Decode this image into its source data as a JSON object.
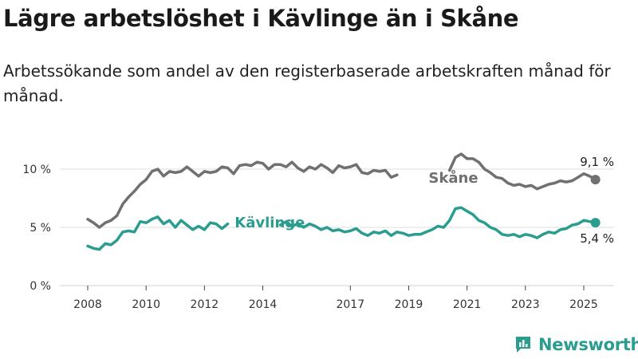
{
  "title": "Lägre arbetslöshet i Kävlinge än i Skåne",
  "subtitle": "Arbetssökande som andel av den registerbaserade arbetskraften månad för månad.",
  "brand": {
    "name": "Newsworthy",
    "icon": "newsworthy-chart-logo-icon",
    "color": "#2a9d8f"
  },
  "chart_data": {
    "type": "line",
    "x_ticks": [
      "2008",
      "2010",
      "2012",
      "2014",
      "2017",
      "2019",
      "2021",
      "2023",
      "2025"
    ],
    "y_ticks": [
      {
        "value": 0,
        "label": "0 %"
      },
      {
        "value": 5,
        "label": "5 %"
      },
      {
        "value": 10,
        "label": "10 %"
      }
    ],
    "ylim": [
      0,
      12
    ],
    "xlim": [
      2007.5,
      2026.5
    ],
    "grid": true,
    "series": [
      {
        "name": "Skåne",
        "color": "#707070",
        "end_label": "9,1 %",
        "points": [
          [
            2008.0,
            5.7
          ],
          [
            2008.2,
            5.4
          ],
          [
            2008.4,
            5.0
          ],
          [
            2008.6,
            5.4
          ],
          [
            2008.8,
            5.6
          ],
          [
            2009.0,
            6.0
          ],
          [
            2009.2,
            7.0
          ],
          [
            2009.4,
            7.6
          ],
          [
            2009.6,
            8.1
          ],
          [
            2009.8,
            8.7
          ],
          [
            2010.0,
            9.1
          ],
          [
            2010.2,
            9.8
          ],
          [
            2010.4,
            10.0
          ],
          [
            2010.6,
            9.4
          ],
          [
            2010.8,
            9.8
          ],
          [
            2011.0,
            9.7
          ],
          [
            2011.2,
            9.8
          ],
          [
            2011.4,
            10.2
          ],
          [
            2011.6,
            9.8
          ],
          [
            2011.8,
            9.4
          ],
          [
            2012.0,
            9.8
          ],
          [
            2012.2,
            9.7
          ],
          [
            2012.4,
            9.8
          ],
          [
            2012.6,
            10.2
          ],
          [
            2012.8,
            10.1
          ],
          [
            2013.0,
            9.6
          ],
          [
            2013.2,
            10.3
          ],
          [
            2013.4,
            10.4
          ],
          [
            2013.6,
            10.3
          ],
          [
            2013.8,
            10.6
          ],
          [
            2014.0,
            10.5
          ],
          [
            2014.2,
            10.0
          ],
          [
            2014.4,
            10.4
          ],
          [
            2014.6,
            10.4
          ],
          [
            2014.8,
            10.2
          ],
          [
            2015.0,
            10.6
          ],
          [
            2015.2,
            10.1
          ],
          [
            2015.4,
            9.8
          ],
          [
            2015.6,
            10.2
          ],
          [
            2015.8,
            10.0
          ],
          [
            2016.0,
            10.4
          ],
          [
            2016.2,
            10.1
          ],
          [
            2016.4,
            9.7
          ],
          [
            2016.6,
            10.3
          ],
          [
            2016.8,
            10.1
          ],
          [
            2017.0,
            10.2
          ],
          [
            2017.2,
            10.4
          ],
          [
            2017.4,
            9.7
          ],
          [
            2017.6,
            9.6
          ],
          [
            2017.8,
            9.9
          ],
          [
            2018.0,
            9.8
          ],
          [
            2018.2,
            9.9
          ],
          [
            2018.4,
            9.3
          ],
          [
            2018.6,
            9.5
          ]
        ],
        "points_after_label": [
          [
            2020.4,
            9.9
          ],
          [
            2020.6,
            11.0
          ],
          [
            2020.8,
            11.3
          ],
          [
            2021.0,
            10.9
          ],
          [
            2021.2,
            10.9
          ],
          [
            2021.4,
            10.6
          ],
          [
            2021.6,
            10.0
          ],
          [
            2021.8,
            9.7
          ],
          [
            2022.0,
            9.3
          ],
          [
            2022.2,
            9.2
          ],
          [
            2022.4,
            8.8
          ],
          [
            2022.6,
            8.6
          ],
          [
            2022.8,
            8.7
          ],
          [
            2023.0,
            8.5
          ],
          [
            2023.2,
            8.6
          ],
          [
            2023.4,
            8.3
          ],
          [
            2023.6,
            8.5
          ],
          [
            2023.8,
            8.7
          ],
          [
            2024.0,
            8.8
          ],
          [
            2024.2,
            9.0
          ],
          [
            2024.4,
            8.9
          ],
          [
            2024.6,
            9.0
          ],
          [
            2024.8,
            9.3
          ],
          [
            2025.0,
            9.6
          ],
          [
            2025.2,
            9.4
          ],
          [
            2025.4,
            9.1
          ]
        ],
        "label_gap_end": [
          2019.8,
          9.2
        ],
        "label_position": [
          2019.6,
          9.3
        ]
      },
      {
        "name": "Kävlinge",
        "color": "#2a9d8f",
        "end_label": "5,4 %",
        "points_before_label": [
          [
            2008.0,
            3.4
          ],
          [
            2008.2,
            3.2
          ],
          [
            2008.4,
            3.1
          ],
          [
            2008.6,
            3.6
          ],
          [
            2008.8,
            3.5
          ],
          [
            2009.0,
            3.9
          ],
          [
            2009.2,
            4.6
          ],
          [
            2009.4,
            4.7
          ],
          [
            2009.6,
            4.6
          ],
          [
            2009.8,
            5.5
          ],
          [
            2010.0,
            5.4
          ],
          [
            2010.2,
            5.7
          ],
          [
            2010.4,
            5.9
          ],
          [
            2010.6,
            5.3
          ],
          [
            2010.8,
            5.6
          ],
          [
            2011.0,
            5.0
          ],
          [
            2011.2,
            5.6
          ],
          [
            2011.4,
            5.2
          ],
          [
            2011.6,
            4.8
          ],
          [
            2011.8,
            5.1
          ],
          [
            2012.0,
            4.8
          ],
          [
            2012.2,
            5.4
          ],
          [
            2012.4,
            5.3
          ],
          [
            2012.6,
            4.9
          ],
          [
            2012.8,
            5.3
          ]
        ],
        "points": [
          [
            2014.6,
            5.2
          ],
          [
            2014.8,
            5.5
          ],
          [
            2015.0,
            5.1
          ],
          [
            2015.2,
            5.3
          ],
          [
            2015.4,
            5.0
          ],
          [
            2015.6,
            5.3
          ],
          [
            2015.8,
            5.1
          ],
          [
            2016.0,
            4.8
          ],
          [
            2016.2,
            5.0
          ],
          [
            2016.4,
            4.7
          ],
          [
            2016.6,
            4.8
          ],
          [
            2016.8,
            4.6
          ],
          [
            2017.0,
            4.7
          ],
          [
            2017.2,
            4.9
          ],
          [
            2017.4,
            4.5
          ],
          [
            2017.6,
            4.3
          ],
          [
            2017.8,
            4.6
          ],
          [
            2018.0,
            4.5
          ],
          [
            2018.2,
            4.7
          ],
          [
            2018.4,
            4.3
          ],
          [
            2018.6,
            4.6
          ],
          [
            2018.8,
            4.5
          ],
          [
            2019.0,
            4.3
          ],
          [
            2019.2,
            4.4
          ],
          [
            2019.4,
            4.4
          ],
          [
            2019.6,
            4.6
          ],
          [
            2019.8,
            4.8
          ],
          [
            2020.0,
            5.1
          ],
          [
            2020.2,
            5.0
          ],
          [
            2020.4,
            5.6
          ],
          [
            2020.6,
            6.6
          ],
          [
            2020.8,
            6.7
          ],
          [
            2021.0,
            6.4
          ],
          [
            2021.2,
            6.1
          ],
          [
            2021.4,
            5.6
          ],
          [
            2021.6,
            5.4
          ],
          [
            2021.8,
            5.0
          ],
          [
            2022.0,
            4.8
          ],
          [
            2022.2,
            4.4
          ],
          [
            2022.4,
            4.3
          ],
          [
            2022.6,
            4.4
          ],
          [
            2022.8,
            4.2
          ],
          [
            2023.0,
            4.4
          ],
          [
            2023.2,
            4.3
          ],
          [
            2023.4,
            4.1
          ],
          [
            2023.6,
            4.4
          ],
          [
            2023.8,
            4.6
          ],
          [
            2024.0,
            4.5
          ],
          [
            2024.2,
            4.8
          ],
          [
            2024.4,
            4.9
          ],
          [
            2024.6,
            5.2
          ],
          [
            2024.8,
            5.3
          ],
          [
            2025.0,
            5.6
          ],
          [
            2025.2,
            5.5
          ],
          [
            2025.4,
            5.4
          ]
        ],
        "label_position": [
          2012.9,
          5.4
        ]
      }
    ]
  }
}
